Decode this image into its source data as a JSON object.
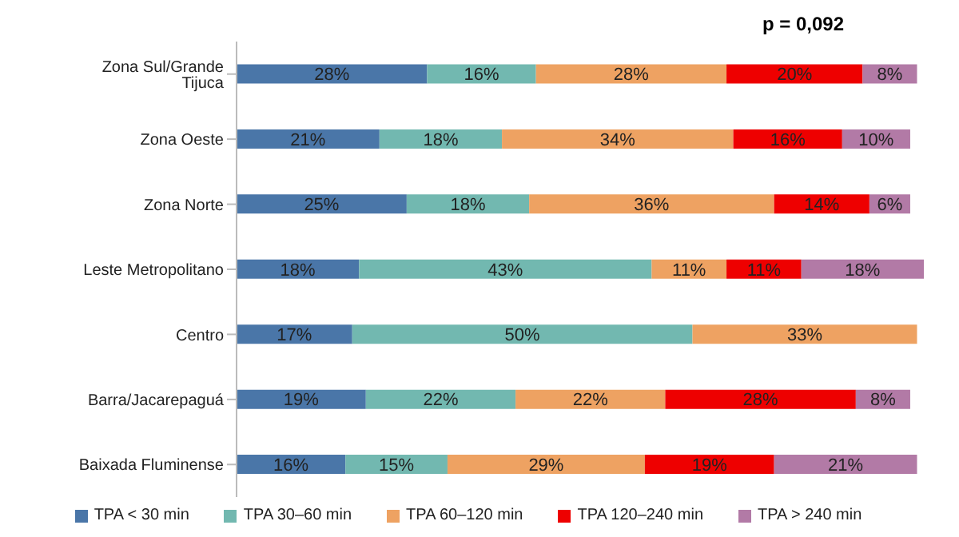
{
  "chart_data": {
    "type": "bar",
    "orientation": "horizontal",
    "stacked": true,
    "legend": "bottom",
    "tick_labels": "y",
    "annotations": [
      "p = 0,092"
    ],
    "categories": [
      "Zona Sul/Grande Tijuca",
      "Zona Oeste",
      "Zona Norte",
      "Leste Metropolitano",
      "Centro",
      "Barra/Jacarepaguá",
      "Baixada Fluminense"
    ],
    "series": [
      {
        "name": "TPA < 30 min",
        "color": "#4a76a8",
        "values": [
          28,
          21,
          25,
          18,
          17,
          19,
          16
        ],
        "value_labels": [
          "28%",
          "21%",
          "25%",
          "18%",
          "17%",
          "19%",
          "16%"
        ]
      },
      {
        "name": "TPA 30–60 min",
        "color": "#72b8b0",
        "values": [
          16,
          18,
          18,
          43,
          50,
          22,
          15
        ],
        "value_labels": [
          "16%",
          "18%",
          "18%",
          "43%",
          "50%",
          "22%",
          "15%"
        ]
      },
      {
        "name": "TPA 60–120 min",
        "color": "#eea262",
        "values": [
          28,
          34,
          36,
          11,
          33,
          22,
          29
        ],
        "value_labels": [
          "28%",
          "34%",
          "36%",
          "11%",
          "33%",
          "22%",
          "29%"
        ]
      },
      {
        "name": "TPA 120–240 min",
        "color": "#ee0000",
        "values": [
          20,
          16,
          14,
          11,
          null,
          28,
          19
        ],
        "value_labels": [
          "20%",
          "16%",
          "14%",
          "11%",
          null,
          "28%",
          "19%"
        ]
      },
      {
        "name": "TPA > 240 min",
        "color": "#b27aa6",
        "values": [
          8,
          10,
          6,
          18,
          null,
          8,
          21
        ],
        "value_labels": [
          "8%",
          "10%",
          "6%",
          "18%",
          null,
          "8%",
          "21%"
        ]
      }
    ]
  }
}
